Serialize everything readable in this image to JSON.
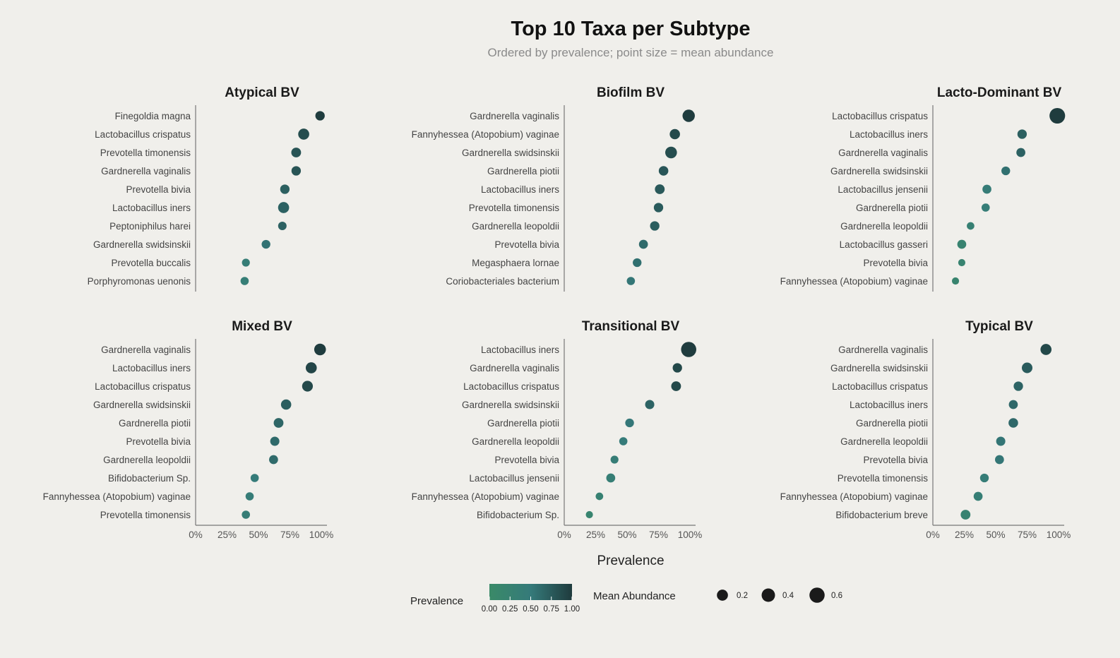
{
  "chart_data": {
    "type": "scatter",
    "title": "Top 10 Taxa per Subtype",
    "subtitle": "Ordered by prevalence; point size = mean abundance",
    "xlabel": "Prevalence",
    "xlim": [
      0,
      1
    ],
    "xticks": [
      "0%",
      "25%",
      "50%",
      "75%",
      "100%"
    ],
    "panels": [
      {
        "name": "Atypical BV",
        "taxa": [
          {
            "label": "Finegoldia magna",
            "prevalence": 0.99,
            "abundance": 0.1
          },
          {
            "label": "Lactobacillus crispatus",
            "prevalence": 0.86,
            "abundance": 0.2
          },
          {
            "label": "Prevotella timonensis",
            "prevalence": 0.8,
            "abundance": 0.12
          },
          {
            "label": "Gardnerella vaginalis",
            "prevalence": 0.8,
            "abundance": 0.1
          },
          {
            "label": "Prevotella bivia",
            "prevalence": 0.71,
            "abundance": 0.1
          },
          {
            "label": "Lactobacillus iners",
            "prevalence": 0.7,
            "abundance": 0.2
          },
          {
            "label": "Peptoniphilus harei",
            "prevalence": 0.69,
            "abundance": 0.06
          },
          {
            "label": "Gardnerella swidsinskii",
            "prevalence": 0.56,
            "abundance": 0.07
          },
          {
            "label": "Prevotella buccalis",
            "prevalence": 0.4,
            "abundance": 0.04
          },
          {
            "label": "Porphyromonas uenonis",
            "prevalence": 0.39,
            "abundance": 0.05
          }
        ]
      },
      {
        "name": "Biofilm BV",
        "taxa": [
          {
            "label": "Gardnerella vaginalis",
            "prevalence": 0.99,
            "abundance": 0.3
          },
          {
            "label": "Fannyhessea (Atopobium) vaginae",
            "prevalence": 0.88,
            "abundance": 0.15
          },
          {
            "label": "Gardnerella swidsinskii",
            "prevalence": 0.85,
            "abundance": 0.25
          },
          {
            "label": "Gardnerella piotii",
            "prevalence": 0.79,
            "abundance": 0.11
          },
          {
            "label": "Lactobacillus iners",
            "prevalence": 0.76,
            "abundance": 0.12
          },
          {
            "label": "Prevotella timonensis",
            "prevalence": 0.75,
            "abundance": 0.1
          },
          {
            "label": "Gardnerella leopoldii",
            "prevalence": 0.72,
            "abundance": 0.1
          },
          {
            "label": "Prevotella bivia",
            "prevalence": 0.63,
            "abundance": 0.08
          },
          {
            "label": "Megasphaera lornae",
            "prevalence": 0.58,
            "abundance": 0.07
          },
          {
            "label": "Coriobacteriales bacterium",
            "prevalence": 0.53,
            "abundance": 0.05
          }
        ]
      },
      {
        "name": "Lacto-Dominant BV",
        "taxa": [
          {
            "label": "Lactobacillus crispatus",
            "prevalence": 0.99,
            "abundance": 0.65
          },
          {
            "label": "Lactobacillus iners",
            "prevalence": 0.71,
            "abundance": 0.1
          },
          {
            "label": "Gardnerella vaginalis",
            "prevalence": 0.7,
            "abundance": 0.08
          },
          {
            "label": "Gardnerella swidsinskii",
            "prevalence": 0.58,
            "abundance": 0.07
          },
          {
            "label": "Lactobacillus jensenii",
            "prevalence": 0.43,
            "abundance": 0.08
          },
          {
            "label": "Gardnerella piotii",
            "prevalence": 0.42,
            "abundance": 0.05
          },
          {
            "label": "Gardnerella leopoldii",
            "prevalence": 0.3,
            "abundance": 0.03
          },
          {
            "label": "Lactobacillus gasseri",
            "prevalence": 0.23,
            "abundance": 0.08
          },
          {
            "label": "Prevotella bivia",
            "prevalence": 0.23,
            "abundance": 0.02
          },
          {
            "label": "Fannyhessea (Atopobium) vaginae",
            "prevalence": 0.18,
            "abundance": 0.02
          }
        ]
      },
      {
        "name": "Mixed BV",
        "taxa": [
          {
            "label": "Gardnerella vaginalis",
            "prevalence": 0.99,
            "abundance": 0.25
          },
          {
            "label": "Lactobacillus iners",
            "prevalence": 0.92,
            "abundance": 0.2
          },
          {
            "label": "Lactobacillus crispatus",
            "prevalence": 0.89,
            "abundance": 0.18
          },
          {
            "label": "Gardnerella swidsinskii",
            "prevalence": 0.72,
            "abundance": 0.15
          },
          {
            "label": "Gardnerella piotii",
            "prevalence": 0.66,
            "abundance": 0.12
          },
          {
            "label": "Prevotella bivia",
            "prevalence": 0.63,
            "abundance": 0.09
          },
          {
            "label": "Gardnerella leopoldii",
            "prevalence": 0.62,
            "abundance": 0.08
          },
          {
            "label": "Bifidobacterium Sp.",
            "prevalence": 0.47,
            "abundance": 0.05
          },
          {
            "label": "Fannyhessea (Atopobium) vaginae",
            "prevalence": 0.43,
            "abundance": 0.05
          },
          {
            "label": "Prevotella timonensis",
            "prevalence": 0.4,
            "abundance": 0.05
          }
        ]
      },
      {
        "name": "Transitional BV",
        "taxa": [
          {
            "label": "Lactobacillus iners",
            "prevalence": 0.99,
            "abundance": 0.6
          },
          {
            "label": "Gardnerella vaginalis",
            "prevalence": 0.9,
            "abundance": 0.1
          },
          {
            "label": "Lactobacillus crispatus",
            "prevalence": 0.89,
            "abundance": 0.12
          },
          {
            "label": "Gardnerella swidsinskii",
            "prevalence": 0.68,
            "abundance": 0.09
          },
          {
            "label": "Gardnerella piotii",
            "prevalence": 0.52,
            "abundance": 0.07
          },
          {
            "label": "Gardnerella leopoldii",
            "prevalence": 0.47,
            "abundance": 0.05
          },
          {
            "label": "Prevotella bivia",
            "prevalence": 0.4,
            "abundance": 0.04
          },
          {
            "label": "Lactobacillus jensenii",
            "prevalence": 0.37,
            "abundance": 0.08
          },
          {
            "label": "Fannyhessea (Atopobium) vaginae",
            "prevalence": 0.28,
            "abundance": 0.03
          },
          {
            "label": "Bifidobacterium Sp.",
            "prevalence": 0.2,
            "abundance": 0.02
          }
        ]
      },
      {
        "name": "Typical BV",
        "taxa": [
          {
            "label": "Gardnerella vaginalis",
            "prevalence": 0.9,
            "abundance": 0.2
          },
          {
            "label": "Gardnerella swidsinskii",
            "prevalence": 0.75,
            "abundance": 0.17
          },
          {
            "label": "Lactobacillus crispatus",
            "prevalence": 0.68,
            "abundance": 0.1
          },
          {
            "label": "Lactobacillus iners",
            "prevalence": 0.64,
            "abundance": 0.08
          },
          {
            "label": "Gardnerella piotii",
            "prevalence": 0.64,
            "abundance": 0.11
          },
          {
            "label": "Gardnerella leopoldii",
            "prevalence": 0.54,
            "abundance": 0.09
          },
          {
            "label": "Prevotella bivia",
            "prevalence": 0.53,
            "abundance": 0.08
          },
          {
            "label": "Prevotella timonensis",
            "prevalence": 0.41,
            "abundance": 0.07
          },
          {
            "label": "Fannyhessea (Atopobium) vaginae",
            "prevalence": 0.36,
            "abundance": 0.08
          },
          {
            "label": "Bifidobacterium breve",
            "prevalence": 0.26,
            "abundance": 0.12
          }
        ]
      }
    ],
    "legend": {
      "color_title": "Prevalence",
      "color_ticks": [
        "0.00",
        "0.25",
        "0.50",
        "0.75",
        "1.00"
      ],
      "color_low": "#3a8a68",
      "color_mid": "#357a7a",
      "color_high": "#1f3b3d",
      "size_title": "Mean Abundance",
      "size_values": [
        0.2,
        0.4,
        0.6
      ],
      "size_labels": [
        "0.2",
        "0.4",
        "0.6"
      ],
      "size_color": "#1a1a1a"
    }
  }
}
